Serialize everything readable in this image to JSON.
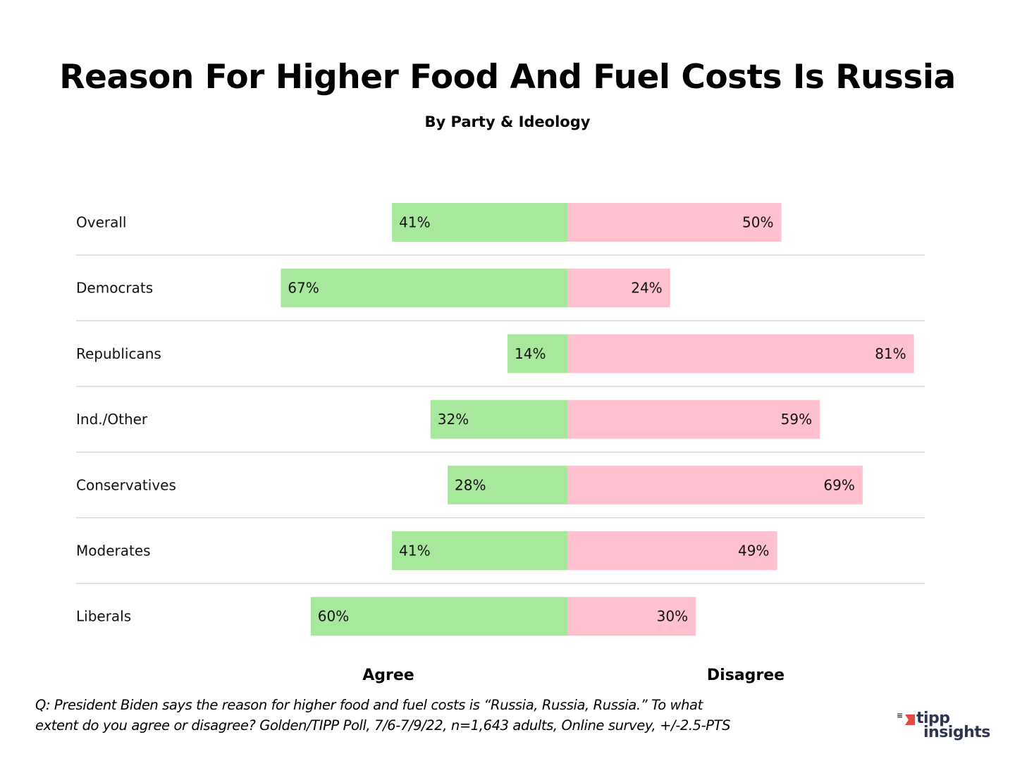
{
  "chart_data": {
    "type": "bar",
    "subtype": "diverging-horizontal",
    "title": "Reason For Higher Food And Fuel Costs Is Russia",
    "subtitle": "By Party & Ideology",
    "categories": [
      "Overall",
      "Democrats",
      "Republicans",
      "Ind./Other",
      "Conservatives",
      "Moderates",
      "Liberals"
    ],
    "series": [
      {
        "name": "Agree",
        "color": "#a8e89c",
        "values": [
          41,
          67,
          14,
          32,
          28,
          41,
          60
        ],
        "labels": [
          "41%",
          "67%",
          "14%",
          "32%",
          "28%",
          "41%",
          "60%"
        ]
      },
      {
        "name": "Disagree",
        "color": "#ffc0cf",
        "values": [
          50,
          24,
          81,
          59,
          69,
          49,
          30
        ],
        "labels": [
          "50%",
          "24%",
          "81%",
          "59%",
          "69%",
          "49%",
          "30%"
        ]
      }
    ],
    "xlabel": "",
    "ylabel": "",
    "xlim": [
      -70,
      85
    ],
    "grid": "horizontal separators between rows",
    "legend": "bottom (Agree under left side, Disagree under right side)",
    "units": "%"
  },
  "footnote": {
    "line1": "Q: President Biden says the reason for higher food and fuel costs is “Russia, Russia, Russia.” To what",
    "line2": "extent do you agree or disagree? Golden/TIPP Poll, 7/6-7/9/22, n=1,643 adults, Online survey, +/-2.5-PTS"
  },
  "logo": {
    "line1": "tipp",
    "line2": "insights",
    "accent_color": "#e8493f",
    "text_color": "#2f3550"
  }
}
